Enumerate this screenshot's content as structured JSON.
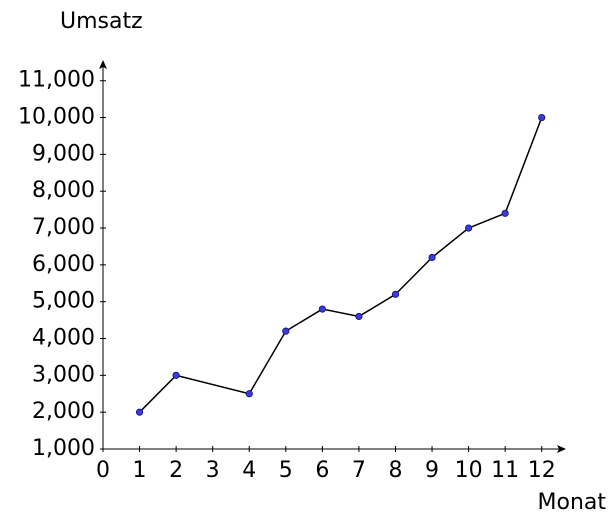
{
  "chart_data": {
    "type": "line",
    "y_label": "Umsatz",
    "x_label": "Monat",
    "x": [
      1,
      2,
      4,
      5,
      6,
      7,
      8,
      9,
      10,
      11,
      12
    ],
    "series": [
      {
        "color": "#000000",
        "marker_color": "#3a3ae0",
        "values": [
          2000,
          3000,
          2500,
          4200,
          4800,
          4600,
          5200,
          6200,
          7000,
          7400,
          10000
        ]
      }
    ],
    "xlim": [
      0,
      12.5
    ],
    "ylim": [
      1000,
      11400
    ],
    "xticks": [
      0,
      1,
      2,
      3,
      4,
      5,
      6,
      7,
      8,
      9,
      10,
      11,
      12
    ],
    "yticks": [
      {
        "value": 1000,
        "label": "1,000"
      },
      {
        "value": 2000,
        "label": "2,000"
      },
      {
        "value": 3000,
        "label": "3,000"
      },
      {
        "value": 4000,
        "label": "4,000"
      },
      {
        "value": 5000,
        "label": "5,000"
      },
      {
        "value": 6000,
        "label": "6,000"
      },
      {
        "value": 7000,
        "label": "7,000"
      },
      {
        "value": 8000,
        "label": "8,000"
      },
      {
        "value": 9000,
        "label": "9,000"
      },
      {
        "value": 10000,
        "label": "10,000"
      },
      {
        "value": 11000,
        "label": "11,000"
      }
    ],
    "grid": false
  }
}
